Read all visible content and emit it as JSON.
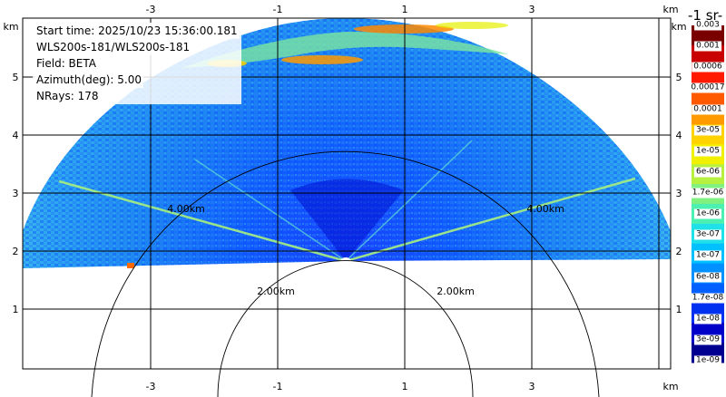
{
  "info": {
    "start_time": "Start time: 2025/10/23 15:36:00.181",
    "instrument": "WLS200s-181/WLS200s-181",
    "field": "Field: BETA",
    "azimuth": "Azimuth(deg): 5.00",
    "nrays": "NRays: 178"
  },
  "axes": {
    "x_ticks": [
      "-3",
      "-1",
      "1",
      "3"
    ],
    "y_ticks": [
      "1",
      "2",
      "3",
      "4",
      "5"
    ],
    "unit": "km"
  },
  "range_rings": [
    "2.00km",
    "4.00km"
  ],
  "colorbar": {
    "title": "-1 sr-",
    "labels": [
      "0.003",
      "0.001",
      "0.0006",
      "0.00017",
      "0.0001",
      "3e-05",
      "1e-05",
      "6e-06",
      "1.7e-06",
      "1e-06",
      "3e-07",
      "1e-07",
      "6e-08",
      "1.7e-08",
      "1e-08",
      "3e-09",
      "1e-09"
    ],
    "colors": [
      "#7a0000",
      "#c80000",
      "#ff1a00",
      "#ff5a00",
      "#ff9a00",
      "#ffd200",
      "#f0f000",
      "#b8f040",
      "#80f080",
      "#4cf0b0",
      "#20e0e8",
      "#00c0ff",
      "#0090ff",
      "#0060ff",
      "#0030f0",
      "#0000c8",
      "#000090"
    ]
  }
}
